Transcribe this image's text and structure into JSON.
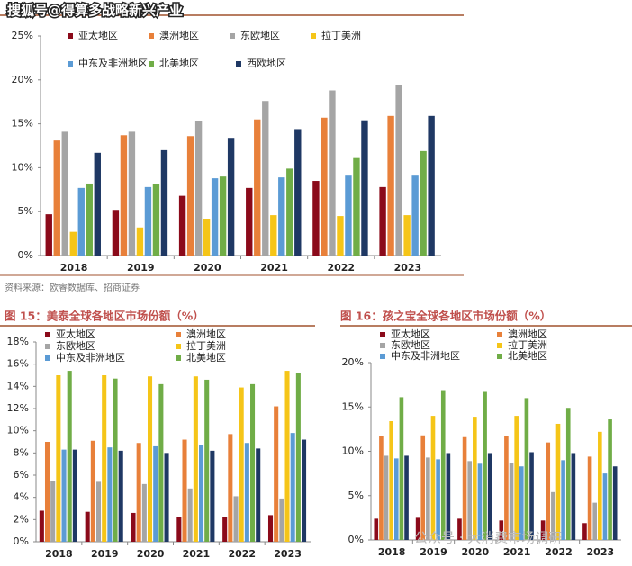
{
  "watermarks": [
    "搜狐号@得算多战略新兴产业",
    "公众号 · 大消费市场调研"
  ],
  "chart_data": [
    {
      "type": "bar",
      "source": "资料来源：欧睿数据库、招商证券",
      "categories": [
        "2018",
        "2019",
        "2020",
        "2021",
        "2022",
        "2023"
      ],
      "ylim": [
        0,
        25
      ],
      "yticks": [
        {
          "value": 0,
          "label": "0%"
        },
        {
          "value": 5,
          "label": "5%"
        },
        {
          "value": 10,
          "label": "10%"
        },
        {
          "value": 15,
          "label": "15%"
        },
        {
          "value": 20,
          "label": "20%"
        },
        {
          "value": 25,
          "label": "25%"
        }
      ],
      "series": [
        {
          "name": "亚太地区",
          "color": "#8b0a1a",
          "values": [
            4.7,
            5.2,
            6.8,
            7.7,
            8.5,
            7.8
          ]
        },
        {
          "name": "澳洲地区",
          "color": "#e8803a",
          "values": [
            13.1,
            13.7,
            13.6,
            15.5,
            15.7,
            15.9
          ]
        },
        {
          "name": "东欧地区",
          "color": "#a5a5a5",
          "values": [
            14.1,
            14.1,
            15.3,
            17.6,
            18.8,
            19.4
          ]
        },
        {
          "name": "拉丁美洲",
          "color": "#f5c518",
          "values": [
            2.7,
            3.2,
            4.2,
            4.6,
            4.5,
            4.6
          ]
        },
        {
          "name": "中东及非洲地区",
          "color": "#5b9bd5",
          "values": [
            7.7,
            7.8,
            8.8,
            8.9,
            9.1,
            9.1
          ]
        },
        {
          "name": "北美地区",
          "color": "#70ad47",
          "values": [
            8.2,
            8.1,
            9.0,
            9.9,
            11.1,
            11.9
          ]
        },
        {
          "name": "西欧地区",
          "color": "#1f3864",
          "values": [
            11.7,
            12.0,
            13.4,
            14.4,
            15.4,
            15.9
          ]
        }
      ]
    },
    {
      "type": "bar",
      "title": "图 15：美泰全球各地区市场份额（%）",
      "categories": [
        "2018",
        "2019",
        "2020",
        "2021",
        "2022",
        "2023"
      ],
      "ylim": [
        0,
        18
      ],
      "yticks": [
        {
          "value": 0,
          "label": "0%"
        },
        {
          "value": 2,
          "label": "2%"
        },
        {
          "value": 4,
          "label": "4%"
        },
        {
          "value": 6,
          "label": "6%"
        },
        {
          "value": 8,
          "label": "8%"
        },
        {
          "value": 10,
          "label": "10%"
        },
        {
          "value": 12,
          "label": "12%"
        },
        {
          "value": 14,
          "label": "14%"
        },
        {
          "value": 16,
          "label": "16%"
        },
        {
          "value": 18,
          "label": "18%"
        }
      ],
      "series": [
        {
          "name": "亚太地区",
          "color": "#8b0a1a",
          "values": [
            2.8,
            2.7,
            2.6,
            2.2,
            2.2,
            2.4
          ]
        },
        {
          "name": "澳洲地区",
          "color": "#e8803a",
          "values": [
            9.0,
            9.1,
            8.9,
            9.2,
            9.7,
            12.2
          ]
        },
        {
          "name": "东欧地区",
          "color": "#a5a5a5",
          "values": [
            5.5,
            5.4,
            5.2,
            4.8,
            4.1,
            3.9
          ]
        },
        {
          "name": "拉丁美洲",
          "color": "#f5c518",
          "values": [
            15.0,
            15.0,
            14.9,
            14.9,
            13.9,
            15.4
          ]
        },
        {
          "name": "中东及非洲地区",
          "color": "#5b9bd5",
          "values": [
            8.3,
            8.5,
            8.6,
            8.7,
            8.9,
            9.8
          ]
        },
        {
          "name": "北美地区",
          "color": "#70ad47",
          "values": [
            15.4,
            14.7,
            14.2,
            14.6,
            14.2,
            15.2
          ]
        },
        {
          "color": "#1f3864",
          "values": [
            8.3,
            8.2,
            8.0,
            8.2,
            8.4,
            9.2
          ]
        }
      ]
    },
    {
      "type": "bar",
      "title": "图 16：孩之宝全球各地区市场份额（%）",
      "categories": [
        "2018",
        "2019",
        "2020",
        "2021",
        "2022",
        "2023"
      ],
      "ylim": [
        0,
        20
      ],
      "yticks": [
        {
          "value": 0,
          "label": "0%"
        },
        {
          "value": 5,
          "label": "5%"
        },
        {
          "value": 10,
          "label": "10%"
        },
        {
          "value": 15,
          "label": "15%"
        },
        {
          "value": 20,
          "label": "20%"
        }
      ],
      "series": [
        {
          "name": "亚太地区",
          "color": "#8b0a1a",
          "values": [
            2.4,
            2.5,
            2.4,
            2.2,
            2.2,
            1.9
          ]
        },
        {
          "name": "澳洲地区",
          "color": "#e8803a",
          "values": [
            11.7,
            11.8,
            11.6,
            11.7,
            11.0,
            9.4
          ]
        },
        {
          "name": "东欧地区",
          "color": "#a5a5a5",
          "values": [
            9.5,
            9.3,
            8.9,
            8.7,
            5.4,
            4.2
          ]
        },
        {
          "name": "拉丁美洲",
          "color": "#f5c518",
          "values": [
            13.4,
            14.0,
            13.9,
            14.0,
            13.1,
            12.2
          ]
        },
        {
          "name": "中东及非洲地区",
          "color": "#5b9bd5",
          "values": [
            9.2,
            9.1,
            8.6,
            8.3,
            9.0,
            7.5
          ]
        },
        {
          "name": "北美地区",
          "color": "#70ad47",
          "values": [
            16.1,
            16.9,
            16.7,
            16.0,
            14.9,
            13.6
          ]
        },
        {
          "color": "#1f3864",
          "values": [
            9.5,
            9.8,
            9.8,
            9.9,
            9.8,
            8.3
          ]
        }
      ]
    }
  ]
}
